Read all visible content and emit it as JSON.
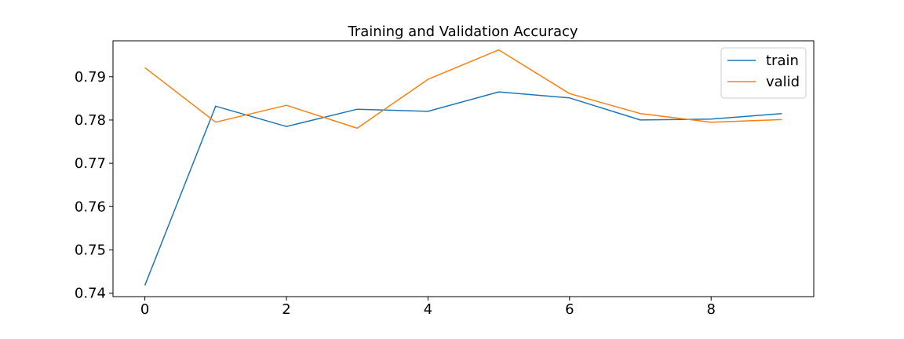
{
  "chart_data": {
    "type": "line",
    "title": "Training and Validation Accuracy",
    "xlabel": "",
    "ylabel": "",
    "x": [
      0,
      1,
      2,
      3,
      4,
      5,
      6,
      7,
      8,
      9
    ],
    "xlim": [
      -0.45,
      9.45
    ],
    "ylim": [
      0.7392,
      0.7983
    ],
    "xticks": [
      0,
      2,
      4,
      6,
      8
    ],
    "xtick_labels": [
      "0",
      "2",
      "4",
      "6",
      "8"
    ],
    "yticks": [
      0.74,
      0.75,
      0.76,
      0.77,
      0.78,
      0.79
    ],
    "ytick_labels": [
      "0.74",
      "0.75",
      "0.76",
      "0.77",
      "0.78",
      "0.79"
    ],
    "grid": false,
    "legend_position": "top-right",
    "series": [
      {
        "name": "train",
        "color": "#1f77b4",
        "values": [
          0.7418,
          0.7832,
          0.7785,
          0.7825,
          0.782,
          0.7865,
          0.7851,
          0.78,
          0.7802,
          0.7815
        ]
      },
      {
        "name": "valid",
        "color": "#ff7f0e",
        "values": [
          0.7921,
          0.7795,
          0.7834,
          0.7781,
          0.7894,
          0.7962,
          0.7861,
          0.7815,
          0.7795,
          0.7801
        ]
      }
    ]
  }
}
